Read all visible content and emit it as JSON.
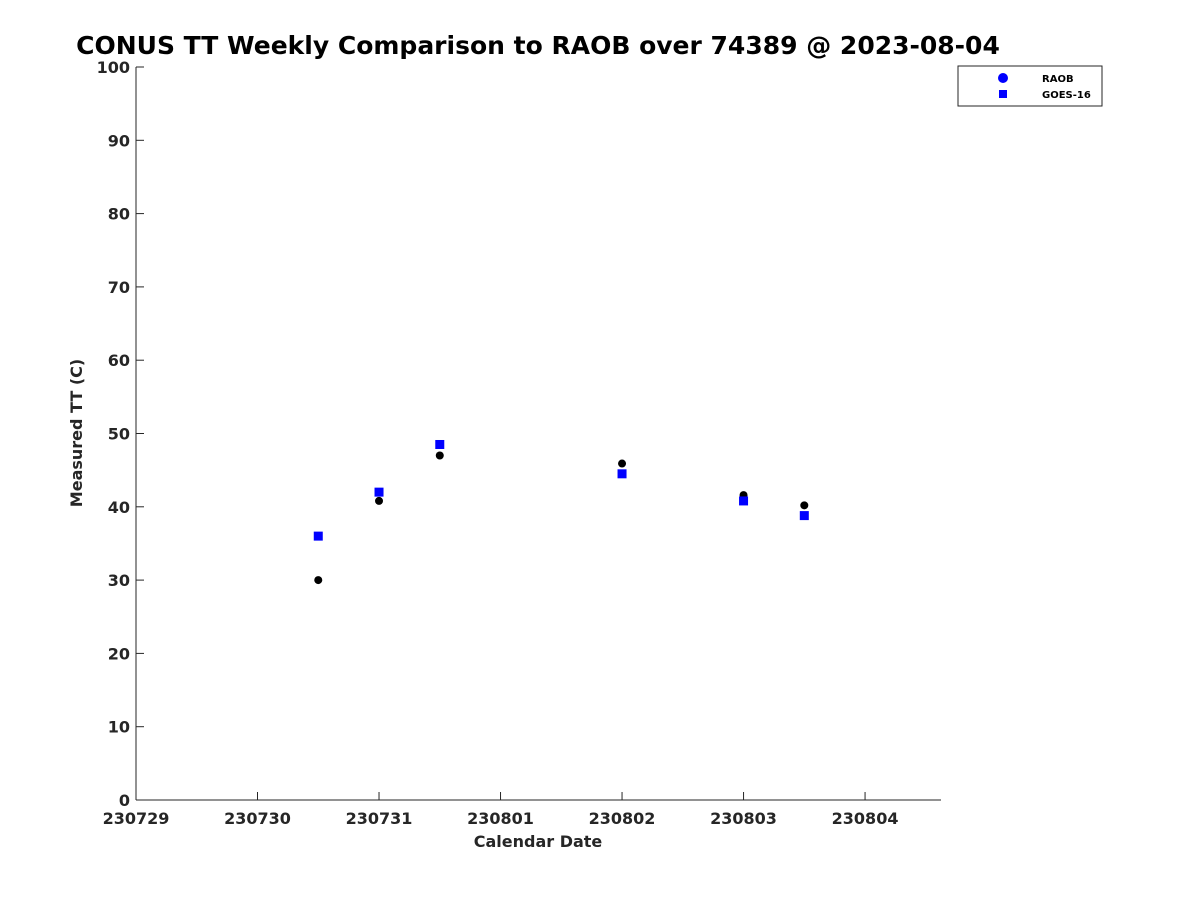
{
  "chart_data": {
    "type": "scatter",
    "title": "CONUS TT Weekly Comparison to RAOB over 74389 @ 2023-08-04",
    "xlabel": "Calendar Date",
    "ylabel": "Measured TT (C)",
    "xlim": [
      "2023-07-29T00:00",
      "2023-08-04T15:00"
    ],
    "ylim": [
      0,
      100
    ],
    "xticks": [
      {
        "value": "2023-07-29T00:00",
        "label": "230729"
      },
      {
        "value": "2023-07-30T00:00",
        "label": "230730"
      },
      {
        "value": "2023-07-31T00:00",
        "label": "230731"
      },
      {
        "value": "2023-08-01T00:00",
        "label": "230801"
      },
      {
        "value": "2023-08-02T00:00",
        "label": "230802"
      },
      {
        "value": "2023-08-03T00:00",
        "label": "230803"
      },
      {
        "value": "2023-08-04T00:00",
        "label": "230804"
      }
    ],
    "yticks": [
      0,
      10,
      20,
      30,
      40,
      50,
      60,
      70,
      80,
      90,
      100
    ],
    "grid": false,
    "legend": "top-right",
    "series": [
      {
        "name": "RAOB",
        "marker": "circle",
        "color": "#000000",
        "legend_color": "#0000ff",
        "points": [
          {
            "x": "2023-07-30T12:00",
            "y": 30.0
          },
          {
            "x": "2023-07-31T00:00",
            "y": 40.8
          },
          {
            "x": "2023-07-31T12:00",
            "y": 47.0
          },
          {
            "x": "2023-08-02T00:00",
            "y": 45.9
          },
          {
            "x": "2023-08-03T00:00",
            "y": 41.6
          },
          {
            "x": "2023-08-03T12:00",
            "y": 40.2
          }
        ]
      },
      {
        "name": "GOES-16",
        "marker": "square",
        "color": "#0000ff",
        "legend_color": "#0000ff",
        "points": [
          {
            "x": "2023-07-30T12:00",
            "y": 36.0
          },
          {
            "x": "2023-07-31T00:00",
            "y": 42.0
          },
          {
            "x": "2023-07-31T12:00",
            "y": 48.5
          },
          {
            "x": "2023-08-02T00:00",
            "y": 44.5
          },
          {
            "x": "2023-08-03T00:00",
            "y": 40.8
          },
          {
            "x": "2023-08-03T12:00",
            "y": 38.8
          }
        ]
      }
    ]
  }
}
